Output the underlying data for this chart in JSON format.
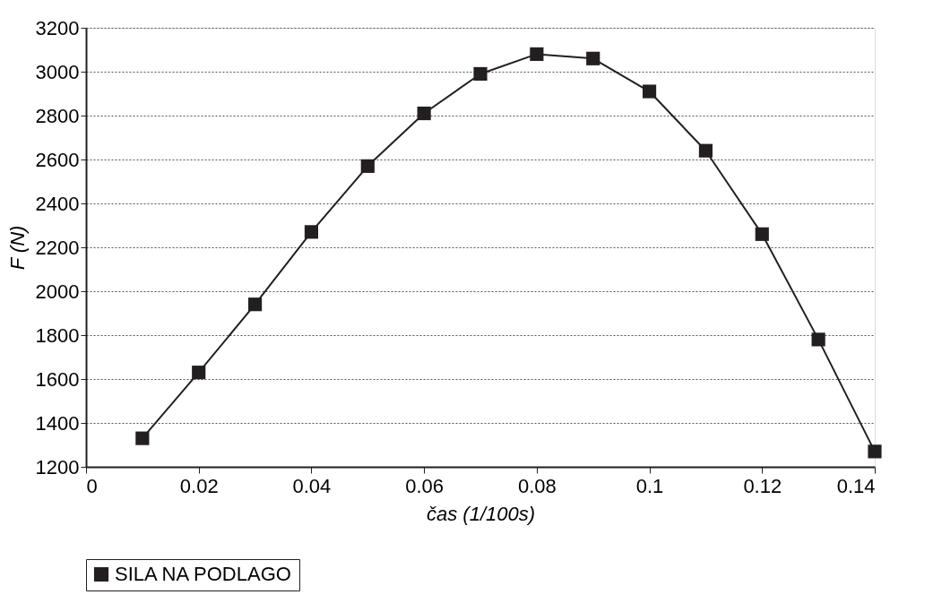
{
  "chart_data": {
    "type": "line",
    "xlabel": "čas (1/100s)",
    "ylabel": "F (N)",
    "x": [
      0.01,
      0.02,
      0.03,
      0.04,
      0.05,
      0.06,
      0.07,
      0.08,
      0.09,
      0.1,
      0.11,
      0.12,
      0.13,
      0.14
    ],
    "series": [
      {
        "name": "SILA NA PODLAGO",
        "color": "#231f20",
        "values": [
          1330,
          1630,
          1940,
          2270,
          2570,
          2810,
          2990,
          3080,
          3060,
          2910,
          2640,
          2260,
          1780,
          1270
        ]
      }
    ],
    "xlim": [
      0,
      0.14
    ],
    "xticks": [
      0,
      0.02,
      0.04,
      0.06,
      0.08,
      0.1,
      0.12,
      0.14
    ],
    "ylim": [
      1200,
      3200
    ],
    "yticks": [
      1200,
      1400,
      1600,
      1800,
      2000,
      2200,
      2400,
      2600,
      2800,
      3000,
      3200
    ],
    "grid": "y",
    "legend": "bottom",
    "marker": "square",
    "line_style": "solid"
  }
}
